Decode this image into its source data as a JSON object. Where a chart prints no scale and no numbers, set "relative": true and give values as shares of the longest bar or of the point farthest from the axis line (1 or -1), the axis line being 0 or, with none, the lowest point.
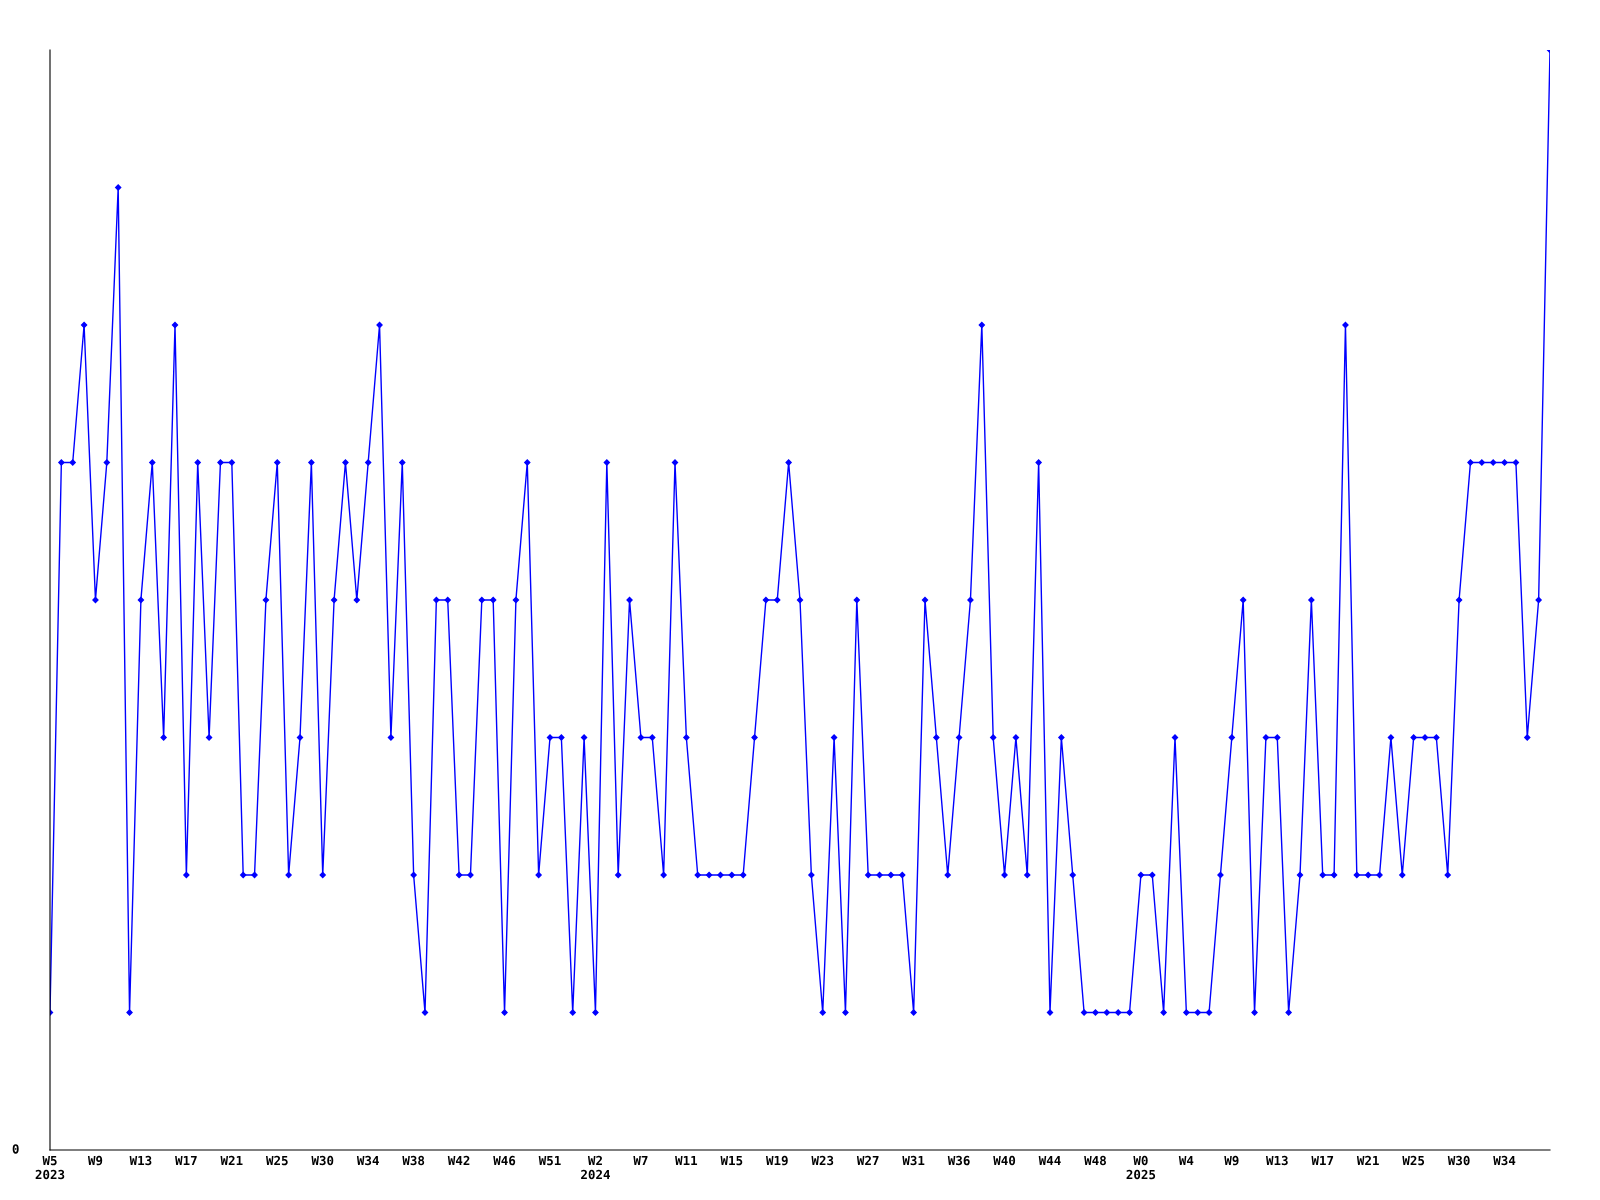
{
  "chart_data": {
    "type": "line",
    "relative": true,
    "marker": "diamond",
    "line_style": "solid",
    "grid": false,
    "legend": false,
    "categories": [
      "W5\n2023",
      null,
      null,
      null,
      "W9",
      null,
      null,
      null,
      "W13",
      null,
      null,
      null,
      "W17",
      null,
      null,
      null,
      "W21",
      null,
      null,
      null,
      "W25",
      null,
      null,
      null,
      "W30",
      null,
      null,
      null,
      "W34",
      null,
      null,
      null,
      "W38",
      null,
      null,
      null,
      "W42",
      null,
      null,
      null,
      "W46",
      null,
      null,
      null,
      "W51",
      null,
      null,
      null,
      "W2\n2024",
      null,
      null,
      null,
      "W7",
      null,
      null,
      null,
      "W11",
      null,
      null,
      null,
      "W15",
      null,
      null,
      null,
      "W19",
      null,
      null,
      null,
      "W23",
      null,
      null,
      null,
      "W27",
      null,
      null,
      null,
      "W31",
      null,
      null,
      null,
      "W36",
      null,
      null,
      null,
      "W40",
      null,
      null,
      null,
      "W44",
      null,
      null,
      null,
      "W48",
      null,
      null,
      null,
      "W0\n2025",
      null,
      null,
      null,
      "W4",
      null,
      null,
      null,
      "W9",
      null,
      null,
      null,
      "W13",
      null,
      null,
      null,
      "W17",
      null,
      null,
      null,
      "W21",
      null,
      null,
      null,
      "W25",
      null,
      null,
      null,
      "W30",
      null,
      null,
      null,
      "W34",
      null,
      null,
      null,
      null
    ],
    "series": [
      {
        "color": "#0000ff",
        "values": [
          0.125,
          0.625,
          0.625,
          0.75,
          0.5,
          0.625,
          0.875,
          0.125,
          0.5,
          0.625,
          0.375,
          0.75,
          0.25,
          0.625,
          0.375,
          0.625,
          0.625,
          0.25,
          0.25,
          0.5,
          0.625,
          0.25,
          0.375,
          0.625,
          0.25,
          0.5,
          0.625,
          0.5,
          0.625,
          0.75,
          0.375,
          0.625,
          0.25,
          0.125,
          0.5,
          0.5,
          0.25,
          0.25,
          0.5,
          0.5,
          0.125,
          0.5,
          0.625,
          0.25,
          0.375,
          0.375,
          0.125,
          0.375,
          0.125,
          0.625,
          0.25,
          0.5,
          0.375,
          0.375,
          0.25,
          0.625,
          0.375,
          0.25,
          0.25,
          0.25,
          0.25,
          0.25,
          0.375,
          0.5,
          0.5,
          0.625,
          0.5,
          0.25,
          0.125,
          0.375,
          0.125,
          0.5,
          0.25,
          0.25,
          0.25,
          0.25,
          0.125,
          0.5,
          0.375,
          0.25,
          0.375,
          0.5,
          0.75,
          0.375,
          0.25,
          0.375,
          0.25,
          0.625,
          0.125,
          0.375,
          0.25,
          0.125,
          0.125,
          0.125,
          0.125,
          0.125,
          0.25,
          0.25,
          0.125,
          0.375,
          0.125,
          0.125,
          0.125,
          0.25,
          0.375,
          0.5,
          0.125,
          0.375,
          0.375,
          0.125,
          0.25,
          0.5,
          0.25,
          0.25,
          0.75,
          0.25,
          0.25,
          0.25,
          0.375,
          0.25,
          0.375,
          0.375,
          0.375,
          0.25,
          0.5,
          0.625,
          0.625,
          0.625,
          0.625,
          0.625,
          0.375,
          0.5,
          1
        ]
      }
    ],
    "annotations": [
      "0"
    ]
  }
}
